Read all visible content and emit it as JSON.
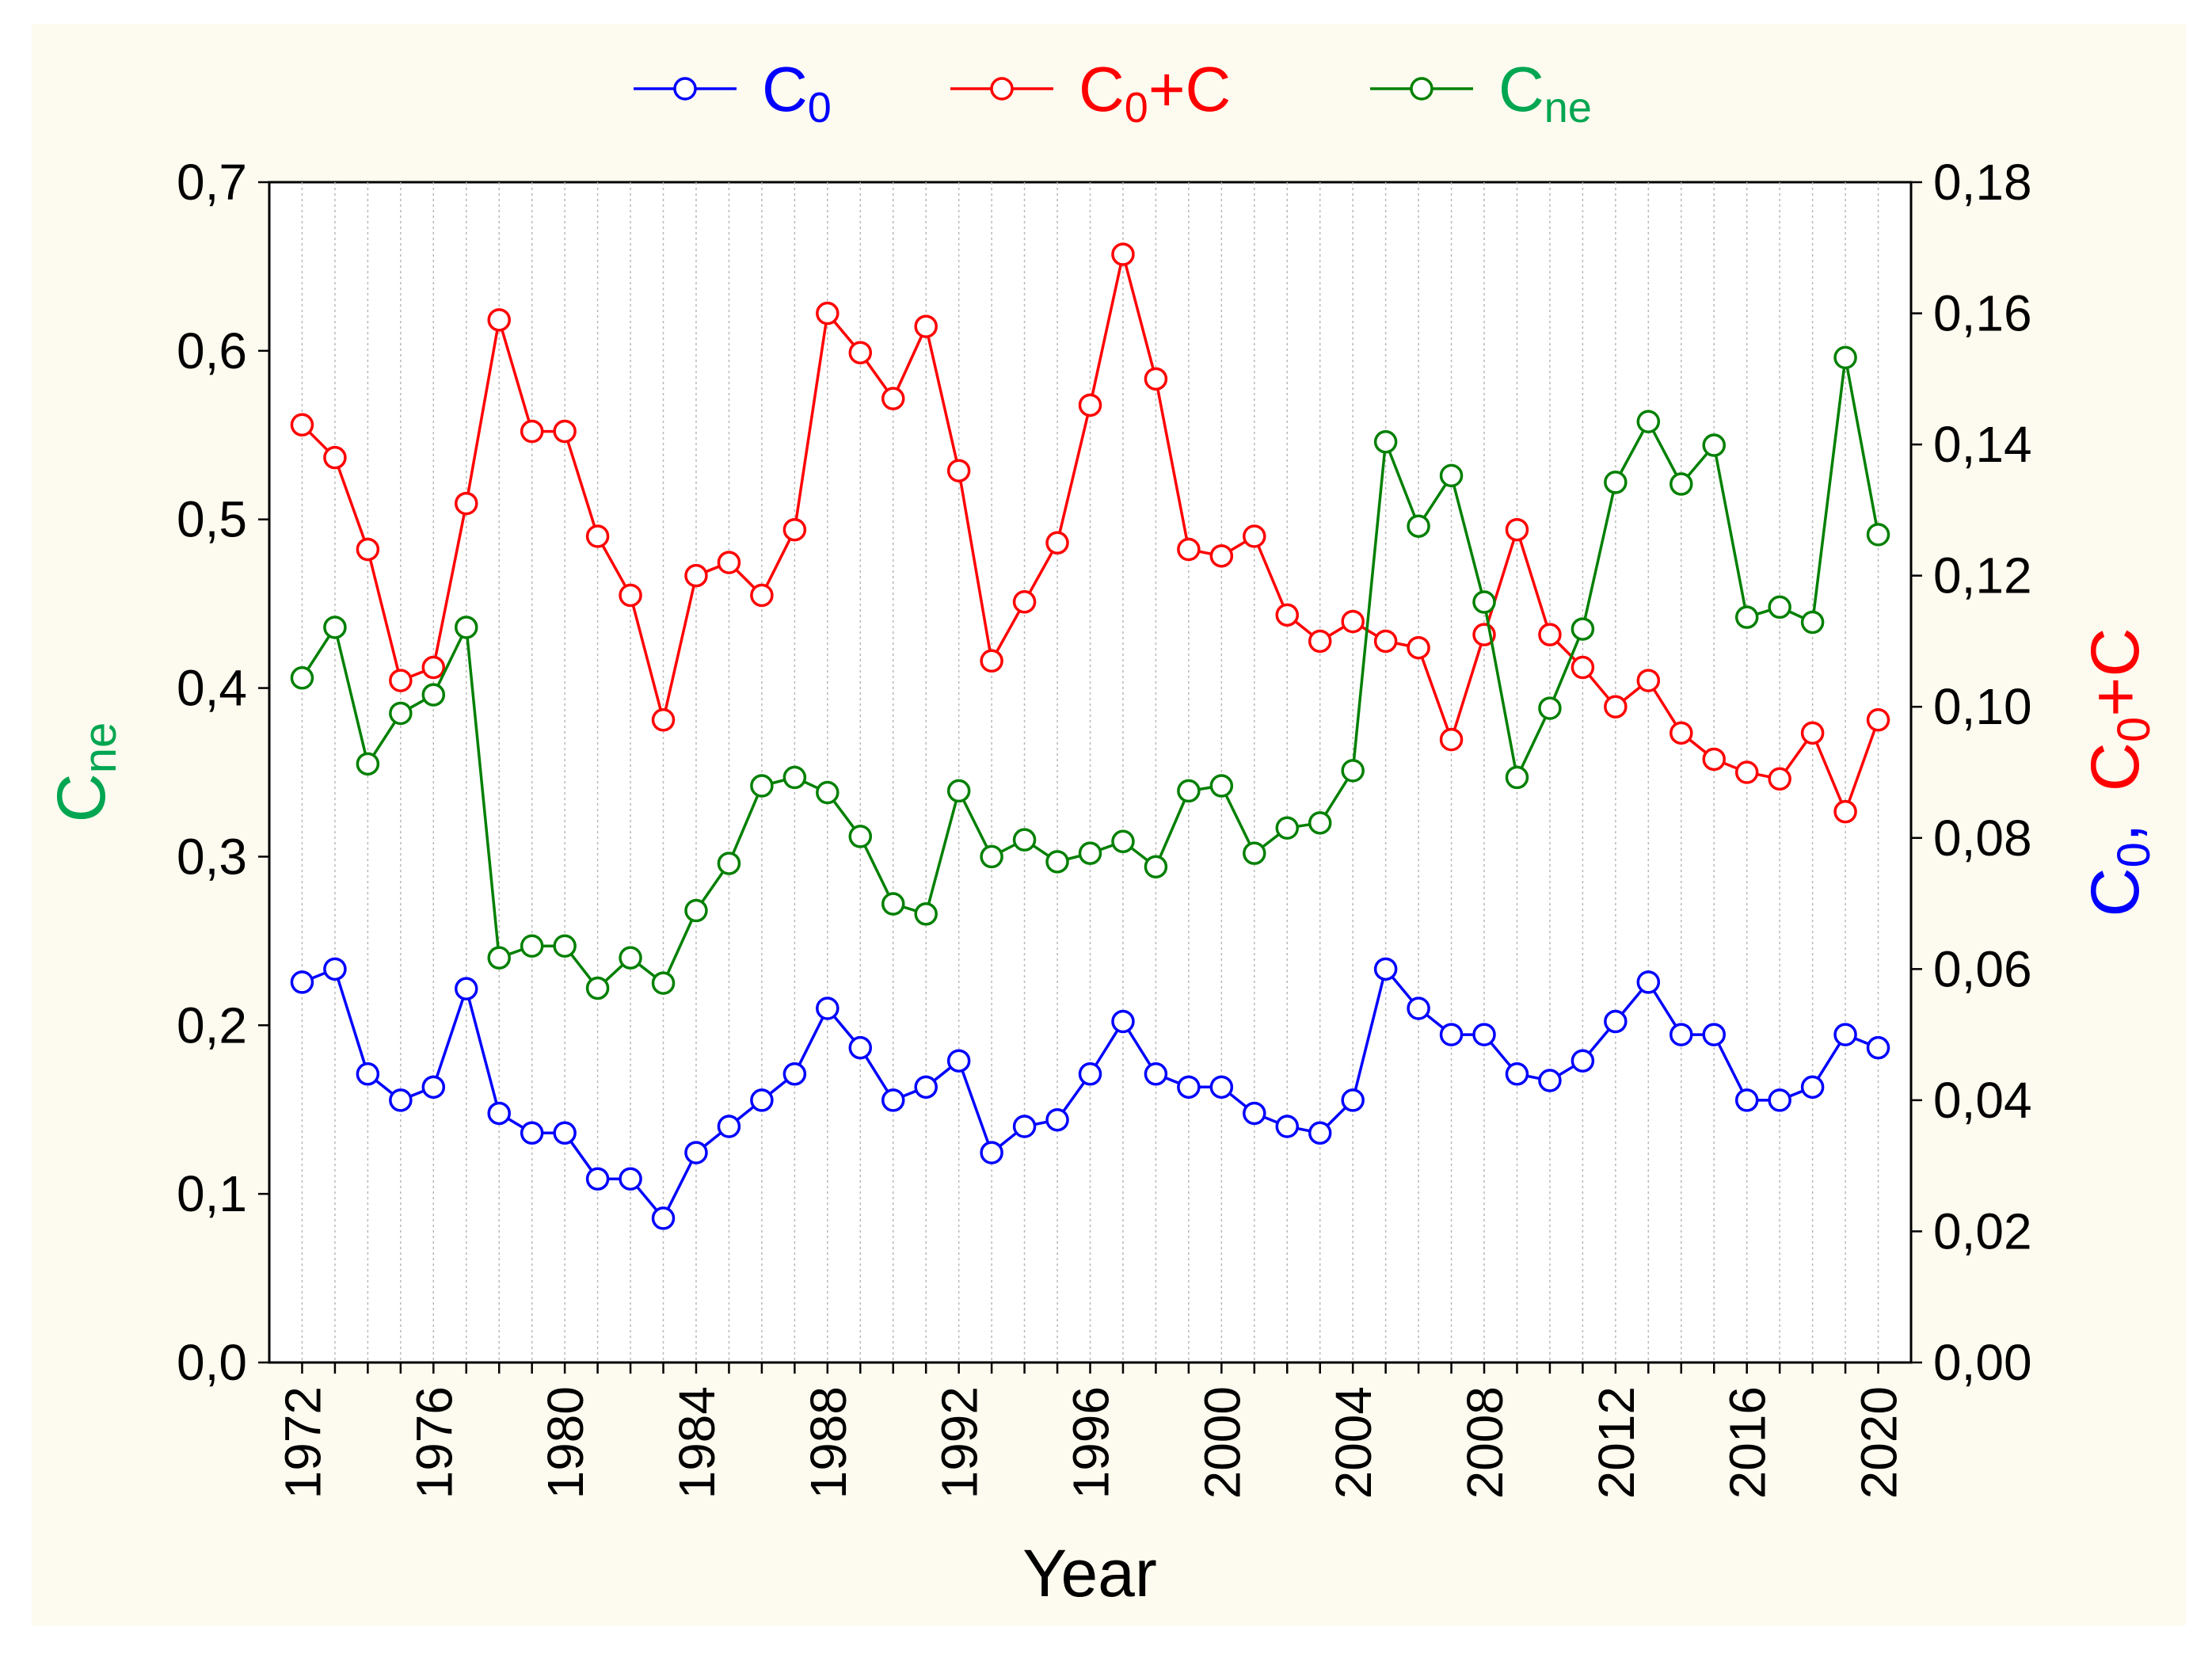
{
  "chart_data": {
    "type": "line",
    "title": "",
    "xlabel": "Year",
    "ylabel_left": {
      "main": "C",
      "sub": "ne"
    },
    "ylabel_right": [
      {
        "main": "C",
        "sub": "0",
        "suffix": ","
      },
      {
        "main": "C",
        "sub": "0",
        "suffix": "+C"
      }
    ],
    "x": [
      1972,
      1973,
      1974,
      1975,
      1976,
      1977,
      1978,
      1979,
      1980,
      1981,
      1982,
      1983,
      1984,
      1985,
      1986,
      1987,
      1988,
      1989,
      1990,
      1991,
      1992,
      1993,
      1994,
      1995,
      1996,
      1997,
      1998,
      1999,
      2000,
      2001,
      2002,
      2003,
      2004,
      2005,
      2006,
      2007,
      2008,
      2009,
      2010,
      2011,
      2012,
      2013,
      2014,
      2015,
      2016,
      2017,
      2018,
      2019,
      2020
    ],
    "x_ticks": [
      1972,
      1976,
      1980,
      1984,
      1988,
      1992,
      1996,
      2000,
      2004,
      2008,
      2012,
      2016,
      2020
    ],
    "xlim": [
      1971,
      2021
    ],
    "ylim_left": [
      0,
      0.7
    ],
    "ylim_right": [
      0,
      0.18
    ],
    "yticks_left": [
      "0,0",
      "0,1",
      "0,2",
      "0,3",
      "0,4",
      "0,5",
      "0,6",
      "0,7"
    ],
    "yticks_right": [
      "0,00",
      "0,02",
      "0,04",
      "0,06",
      "0,08",
      "0,10",
      "0,12",
      "0,14",
      "0,16",
      "0,18"
    ],
    "grid": "vertical-dotted",
    "legend_position": "top-center",
    "series": [
      {
        "name": "C0",
        "label": {
          "main": "C",
          "sub": "0"
        },
        "color": "#0000ff",
        "axis": "right",
        "values": [
          0.058,
          0.06,
          0.044,
          0.04,
          0.042,
          0.057,
          0.038,
          0.035,
          0.035,
          0.028,
          0.028,
          0.022,
          0.032,
          0.036,
          0.04,
          0.044,
          0.054,
          0.048,
          0.04,
          0.042,
          0.046,
          0.032,
          0.036,
          0.037,
          0.044,
          0.052,
          0.044,
          0.042,
          0.042,
          0.038,
          0.036,
          0.035,
          0.04,
          0.06,
          0.054,
          0.05,
          0.05,
          0.044,
          0.043,
          0.046,
          0.052,
          0.058,
          0.05,
          0.05,
          0.04,
          0.04,
          0.042,
          0.05,
          0.048
        ]
      },
      {
        "name": "C0+C",
        "label": {
          "main": "C",
          "sub": "0",
          "suffix": "+C"
        },
        "color": "#ff0000",
        "axis": "right",
        "values": [
          0.143,
          0.138,
          0.124,
          0.104,
          0.106,
          0.131,
          0.159,
          0.142,
          0.142,
          0.126,
          0.117,
          0.098,
          0.12,
          0.122,
          0.117,
          0.127,
          0.16,
          0.154,
          0.147,
          0.158,
          0.136,
          0.107,
          0.116,
          0.125,
          0.146,
          0.169,
          0.15,
          0.124,
          0.123,
          0.126,
          0.114,
          0.11,
          0.113,
          0.11,
          0.109,
          0.095,
          0.111,
          0.127,
          0.111,
          0.106,
          0.1,
          0.104,
          0.096,
          0.092,
          0.09,
          0.089,
          0.096,
          0.084,
          0.098
        ]
      },
      {
        "name": "Cne",
        "label": {
          "main": "C",
          "sub": "ne"
        },
        "color": "#008000",
        "label_color": "#00a651",
        "axis": "left",
        "values": [
          0.406,
          0.436,
          0.355,
          0.385,
          0.396,
          0.436,
          0.24,
          0.247,
          0.247,
          0.222,
          0.24,
          0.225,
          0.268,
          0.296,
          0.342,
          0.347,
          0.338,
          0.312,
          0.272,
          0.266,
          0.339,
          0.3,
          0.31,
          0.297,
          0.302,
          0.309,
          0.294,
          0.339,
          0.342,
          0.302,
          0.317,
          0.32,
          0.351,
          0.546,
          0.496,
          0.526,
          0.451,
          0.347,
          0.388,
          0.435,
          0.522,
          0.558,
          0.521,
          0.544,
          0.442,
          0.448,
          0.439,
          0.596,
          0.491
        ]
      }
    ]
  }
}
